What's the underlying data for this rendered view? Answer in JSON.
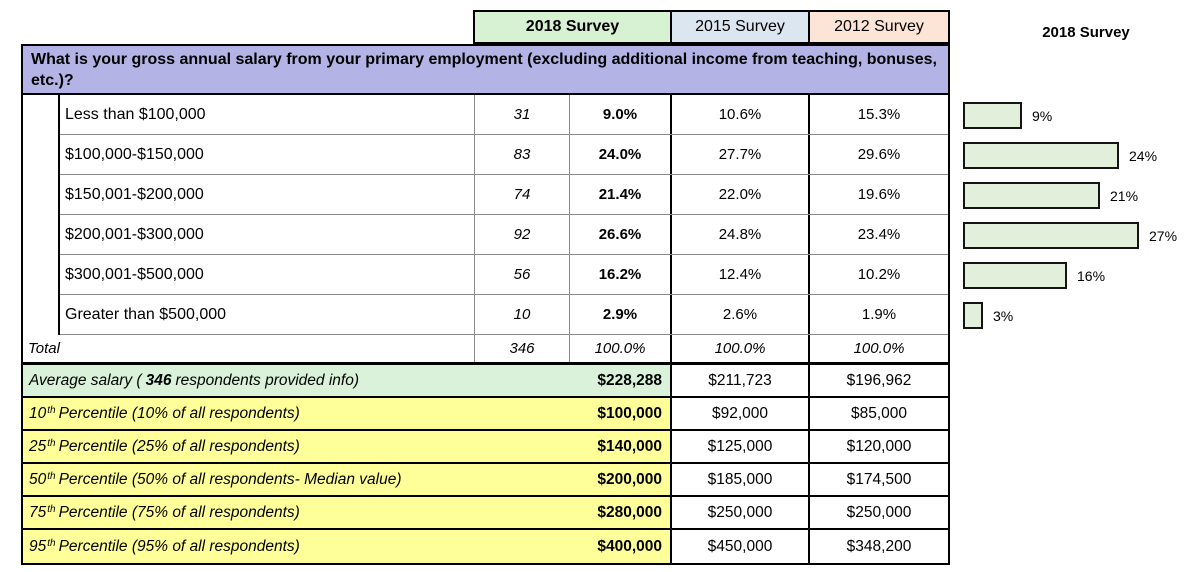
{
  "header": {
    "col2018": "2018 Survey",
    "col2015": "2015 Survey",
    "col2012": "2012 Survey"
  },
  "question": "What is your gross annual salary from your primary employment (excluding additional income from teaching, bonuses, etc.)?",
  "rows": [
    {
      "label": "Less than $100,000",
      "count": "31",
      "p2018": "9.0%",
      "p2015": "10.6%",
      "p2012": "15.3%"
    },
    {
      "label": "$100,000-$150,000",
      "count": "83",
      "p2018": "24.0%",
      "p2015": "27.7%",
      "p2012": "29.6%"
    },
    {
      "label": "$150,001-$200,000",
      "count": "74",
      "p2018": "21.4%",
      "p2015": "22.0%",
      "p2012": "19.6%"
    },
    {
      "label": "$200,001-$300,000",
      "count": "92",
      "p2018": "26.6%",
      "p2015": "24.8%",
      "p2012": "23.4%"
    },
    {
      "label": "$300,001-$500,000",
      "count": "56",
      "p2018": "16.2%",
      "p2015": "12.4%",
      "p2012": "10.2%"
    },
    {
      "label": "Greater than $500,000",
      "count": "10",
      "p2018": "2.9%",
      "p2015": "2.6%",
      "p2012": "1.9%"
    }
  ],
  "total": {
    "label": "Total",
    "count": "346",
    "p2018": "100.0%",
    "p2015": "100.0%",
    "p2012": "100.0%"
  },
  "average": {
    "prefix": "Average salary (",
    "bold_count": "346",
    "suffix": " respondents provided info)",
    "v2018": "$228,288",
    "v2015": "$211,723",
    "v2012": "$196,962"
  },
  "percentiles": [
    {
      "num": "10",
      "sup": "th",
      "desc": " Percentile (10% of all respondents)",
      "v2018": "$100,000",
      "v2015": "$92,000",
      "v2012": "$85,000"
    },
    {
      "num": "25",
      "sup": "th",
      "desc": " Percentile (25% of all respondents)",
      "v2018": "$140,000",
      "v2015": "$125,000",
      "v2012": "$120,000"
    },
    {
      "num": "50",
      "sup": "th",
      "desc": " Percentile (50% of all respondents- Median value)",
      "v2018": "$200,000",
      "v2015": "$185,000",
      "v2012": "$174,500"
    },
    {
      "num": "75",
      "sup": "th",
      "desc": " Percentile (75% of all respondents)",
      "v2018": "$280,000",
      "v2015": "$250,000",
      "v2012": "$250,000"
    },
    {
      "num": "95",
      "sup": "th",
      "desc": " Percentile (95% of all respondents)",
      "v2018": "$400,000",
      "v2015": "$450,000",
      "v2012": "$348,200"
    }
  ],
  "chart": {
    "title": "2018 Survey",
    "labels": [
      "9%",
      "24%",
      "21%",
      "27%",
      "16%",
      "3%"
    ]
  },
  "chart_data": {
    "type": "bar",
    "orientation": "horizontal",
    "title": "2018 Survey",
    "categories": [
      "Less than $100,000",
      "$100,000-$150,000",
      "$150,001-$200,000",
      "$200,001-$300,000",
      "$300,001-$500,000",
      "Greater than $500,000"
    ],
    "values": [
      9,
      24,
      21,
      27,
      16,
      3
    ],
    "value_labels": [
      "9%",
      "24%",
      "21%",
      "27%",
      "16%",
      "3%"
    ],
    "xlabel": "",
    "ylabel": "",
    "xlim": [
      0,
      30
    ],
    "grid": false,
    "axes_shown": false,
    "data_labels": "right of bars",
    "bar_fill": "#e2efda",
    "bar_border": "#000000"
  },
  "colors": {
    "header_2018_green": "#d6f2d2",
    "header_2015_blue": "#dce6f1",
    "header_2012_peach": "#fce4d6",
    "question_banner_purple": "#b3b3e6",
    "average_row_green": "#d9f2d9",
    "percentile_row_yellow": "#ffff99",
    "bar_fill_green": "#e2efda",
    "grid_line_gray": "#8a8a8a",
    "border_black": "#000000"
  }
}
